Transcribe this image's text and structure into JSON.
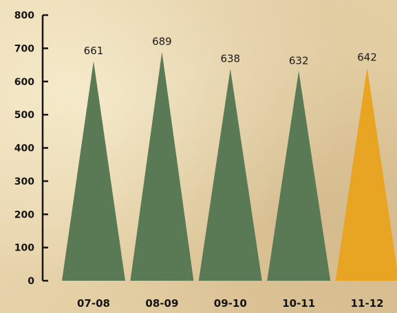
{
  "chart_data": {
    "type": "bar",
    "bar_shape": "triangle",
    "categories": [
      "07-08",
      "08-09",
      "09-10",
      "10-11",
      "11-12"
    ],
    "values": [
      661,
      689,
      638,
      632,
      642
    ],
    "data_labels": [
      "661",
      "689",
      "638",
      "632",
      "642"
    ],
    "bar_colors": [
      "#5a7a55",
      "#5a7a55",
      "#5a7a55",
      "#5a7a55",
      "#e8a423"
    ],
    "ylim": [
      0,
      800
    ],
    "yticks": [
      "0",
      "100",
      "200",
      "300",
      "400",
      "500",
      "600",
      "700",
      "800"
    ],
    "grid": false,
    "title": "",
    "xlabel": "",
    "ylabel": ""
  }
}
